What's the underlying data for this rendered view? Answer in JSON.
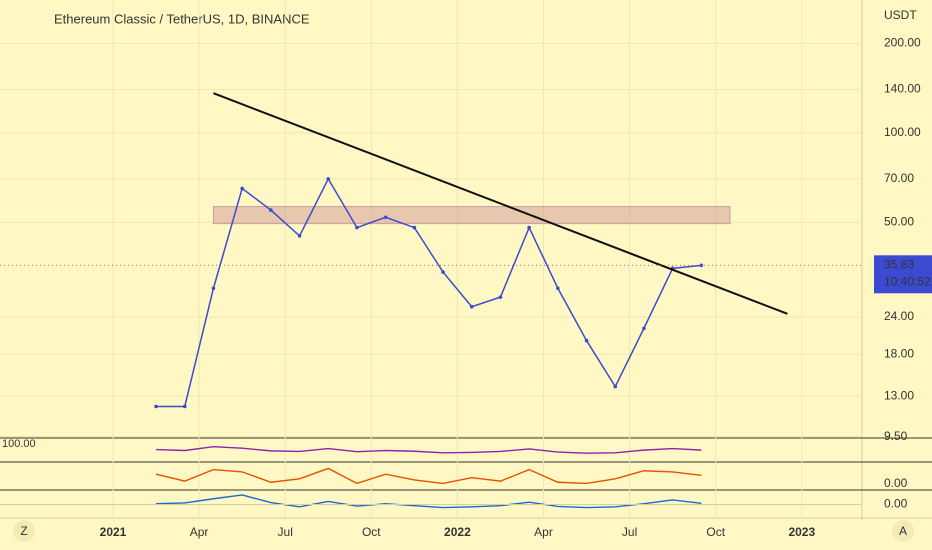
{
  "header": {
    "title": "Ethereum Classic / TetherUS, 1D, BINANCE",
    "currency": "USDT"
  },
  "ui": {
    "left_button": "Z",
    "right_button": "A"
  },
  "chart_data": {
    "type": "line",
    "x": [
      "2021-02",
      "2021-03",
      "2021-04",
      "2021-05",
      "2021-06",
      "2021-07",
      "2021-08",
      "2021-09",
      "2021-10",
      "2021-11",
      "2021-12",
      "2022-01",
      "2022-02",
      "2022-03",
      "2022-04",
      "2022-05",
      "2022-06",
      "2022-07",
      "2022-08",
      "2022-09"
    ],
    "values": [
      12,
      12,
      30,
      65,
      55,
      45,
      70,
      48,
      52,
      48,
      34,
      26,
      28,
      48,
      30,
      20,
      14,
      22,
      35,
      35.83
    ],
    "color": "#3b4bd1",
    "log_scale": true,
    "grid": true,
    "ylim": [
      9.4,
      280
    ],
    "yticks": [
      {
        "value": 200,
        "label": "200.00"
      },
      {
        "value": 140,
        "label": "140.00"
      },
      {
        "value": 100,
        "label": "100.00"
      },
      {
        "value": 70,
        "label": "70.00"
      },
      {
        "value": 50,
        "label": "50.00"
      },
      {
        "value": 24,
        "label": "24.00"
      },
      {
        "value": 18,
        "label": "18.00"
      },
      {
        "value": 13,
        "label": "13.00"
      },
      {
        "value": 9.5,
        "label": "9.50"
      }
    ],
    "xticks": [
      {
        "value": "2021-01",
        "label": "2021"
      },
      {
        "value": "2021-04",
        "label": "Apr"
      },
      {
        "value": "2021-07",
        "label": "Jul"
      },
      {
        "value": "2021-10",
        "label": "Oct"
      },
      {
        "value": "2022-01",
        "label": "2022"
      },
      {
        "value": "2022-04",
        "label": "Apr"
      },
      {
        "value": "2022-07",
        "label": "Jul"
      },
      {
        "value": "2022-10",
        "label": "Oct"
      },
      {
        "value": "2023-01",
        "label": "2023"
      }
    ],
    "last_price": 35.83,
    "countdown": "10:40:52",
    "trendline": {
      "from": [
        "2021-04",
        136
      ],
      "to": [
        "2022-12",
        24.6
      ]
    },
    "zone": {
      "from": "2021-04",
      "to": "2022-10",
      "low": 49.5,
      "high": 56.5
    },
    "rsi": {
      "ylim": [
        0,
        100
      ],
      "label": {
        "value": 100,
        "label": "100.00"
      },
      "values": [
        55,
        50,
        70,
        62,
        48,
        45,
        60,
        44,
        50,
        46,
        38,
        40,
        45,
        58,
        42,
        36,
        38,
        52,
        60,
        52
      ]
    },
    "stoch": {
      "ylim": [
        0,
        100
      ],
      "label": {
        "value": 0,
        "label": "0.00"
      },
      "values": [
        60,
        30,
        80,
        70,
        25,
        40,
        85,
        20,
        60,
        35,
        20,
        45,
        30,
        80,
        25,
        20,
        40,
        75,
        70,
        55
      ]
    },
    "macd": {
      "ylim": [
        -3,
        3
      ],
      "label": {
        "value": 0,
        "label": "0.00"
      },
      "values": [
        0.2,
        0.4,
        1.5,
        2.5,
        0.5,
        -0.6,
        0.8,
        -0.4,
        0.2,
        -0.3,
        -0.8,
        -0.6,
        -0.3,
        0.6,
        -0.5,
        -0.8,
        -0.6,
        0.2,
        1.2,
        0.3
      ]
    }
  }
}
